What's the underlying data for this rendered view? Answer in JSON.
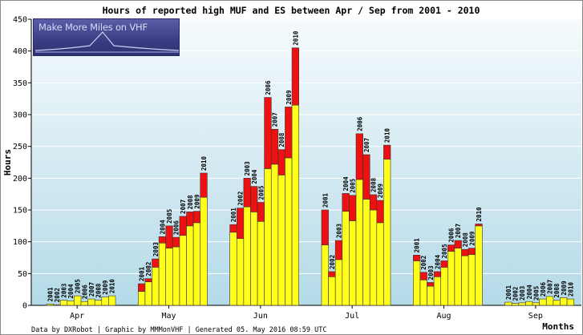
{
  "chart_data": {
    "type": "bar",
    "title": "Hours of reported high MUF and ES between Apr / Sep from 2001 - 2010",
    "xlabel": "Months",
    "ylabel": "Hours",
    "ylim": [
      0,
      450
    ],
    "yticks": [
      0,
      50,
      100,
      150,
      200,
      250,
      300,
      350,
      400,
      450
    ],
    "grid": true,
    "categories": [
      "Apr",
      "May",
      "Jun",
      "Jul",
      "Aug",
      "Sep"
    ],
    "bar_labels": [
      "2001",
      "2002",
      "2003",
      "2004",
      "2005",
      "2006",
      "2007",
      "2008",
      "2009",
      "2010"
    ],
    "series": [
      {
        "name": "",
        "color": "#ffff1a",
        "values": [
          [
            2,
            1,
            8,
            7,
            15,
            6,
            10,
            8,
            13,
            15
          ],
          [
            22,
            37,
            60,
            98,
            90,
            92,
            110,
            125,
            130,
            170
          ],
          [
            115,
            105,
            155,
            147,
            132,
            215,
            222,
            205,
            232,
            315
          ],
          [
            95,
            45,
            72,
            148,
            133,
            198,
            167,
            150,
            130,
            230
          ],
          [
            70,
            40,
            30,
            45,
            60,
            85,
            90,
            78,
            80,
            125
          ],
          [
            5,
            3,
            4,
            6,
            4,
            10,
            14,
            8,
            12,
            10
          ]
        ]
      },
      {
        "name": "",
        "color": "#ee1111",
        "values": [
          [
            0,
            0,
            0,
            0,
            0,
            0,
            0,
            0,
            0,
            0
          ],
          [
            12,
            5,
            13,
            10,
            35,
            15,
            30,
            22,
            18,
            38
          ],
          [
            12,
            48,
            45,
            40,
            30,
            112,
            55,
            40,
            80,
            90
          ],
          [
            55,
            8,
            30,
            28,
            40,
            72,
            70,
            24,
            35,
            22
          ],
          [
            9,
            12,
            6,
            8,
            10,
            10,
            12,
            10,
            10,
            3
          ],
          [
            0,
            0,
            0,
            0,
            0,
            0,
            0,
            0,
            0,
            0
          ]
        ]
      }
    ]
  },
  "logo": {
    "text": "Make More Miles on VHF"
  },
  "footer": {
    "credits": "Data by DXRobot  |  Graphic by MMMonVHF  |  Generated 05. May 2016 08:59 UTC"
  },
  "colors": {
    "plot_top": "#f6fbfd",
    "plot_bottom": "#b4dae8",
    "gridline": "#ffffff",
    "yellow": "#ffff1a",
    "red": "#ee1111",
    "bar_outline": "#333333"
  }
}
